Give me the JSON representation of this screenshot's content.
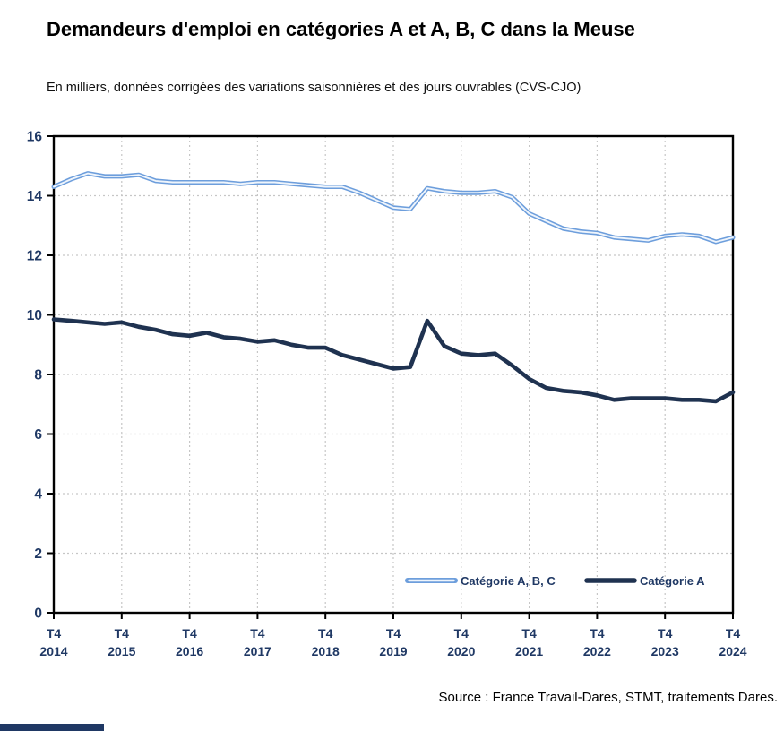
{
  "header": {
    "title": "Demandeurs d'emploi en catégories A et A, B, C dans la Meuse",
    "subtitle": "En milliers, données corrigées des variations saisonnières et des jours ouvrables (CVS-CJO)"
  },
  "source": "Source : France Travail-Dares, STMT, traitements Dares.",
  "colors": {
    "axis_label": "#1F3864",
    "frame": "#000000",
    "grid": "#C6C6C6",
    "footer_bar": "#1F3864",
    "series_abc_outer": "#6D9EDC",
    "series_abc_inner": "#EFF5FC",
    "series_a": "#1F3250",
    "legend_text": "#1F3864"
  },
  "chart_data": {
    "type": "line",
    "title": "Demandeurs d'emploi en catégories A et A, B, C dans la Meuse",
    "subtitle": "En milliers, données corrigées des variations saisonnières et des jours ouvrables (CVS-CJO)",
    "xlabel": "",
    "ylabel": "",
    "ylim": [
      0,
      16
    ],
    "y_ticks": [
      0,
      2,
      4,
      6,
      8,
      10,
      12,
      14,
      16
    ],
    "grid": true,
    "legend_position": "inside-bottom",
    "x_tick_quarter": "T4",
    "x_tick_years": [
      "2014",
      "2015",
      "2016",
      "2017",
      "2018",
      "2019",
      "2020",
      "2021",
      "2022",
      "2023",
      "2024"
    ],
    "x": [
      "T4 2014",
      "T1 2015",
      "T2 2015",
      "T3 2015",
      "T4 2015",
      "T1 2016",
      "T2 2016",
      "T3 2016",
      "T4 2016",
      "T1 2017",
      "T2 2017",
      "T3 2017",
      "T4 2017",
      "T1 2018",
      "T2 2018",
      "T3 2018",
      "T4 2018",
      "T1 2019",
      "T2 2019",
      "T3 2019",
      "T4 2019",
      "T1 2020",
      "T2 2020",
      "T3 2020",
      "T4 2020",
      "T1 2021",
      "T2 2021",
      "T3 2021",
      "T4 2021",
      "T1 2022",
      "T2 2022",
      "T3 2022",
      "T4 2022",
      "T1 2023",
      "T2 2023",
      "T3 2023",
      "T4 2023",
      "T1 2024",
      "T2 2024",
      "T3 2024",
      "T4 2024"
    ],
    "series": [
      {
        "name": "Catégorie A, B, C",
        "line_style": "double-outline",
        "values": [
          14.3,
          14.55,
          14.75,
          14.65,
          14.65,
          14.7,
          14.5,
          14.45,
          14.45,
          14.45,
          14.45,
          14.4,
          14.45,
          14.45,
          14.4,
          14.35,
          14.3,
          14.3,
          14.1,
          13.85,
          13.6,
          13.55,
          14.25,
          14.15,
          14.1,
          14.1,
          14.15,
          13.95,
          13.4,
          13.15,
          12.9,
          12.8,
          12.75,
          12.6,
          12.55,
          12.5,
          12.65,
          12.7,
          12.65,
          12.45,
          12.6
        ]
      },
      {
        "name": "Catégorie A",
        "line_style": "solid-thick",
        "values": [
          9.85,
          9.8,
          9.75,
          9.7,
          9.75,
          9.6,
          9.5,
          9.35,
          9.3,
          9.4,
          9.25,
          9.2,
          9.1,
          9.15,
          9.0,
          8.9,
          8.9,
          8.65,
          8.5,
          8.35,
          8.2,
          8.25,
          9.8,
          8.95,
          8.7,
          8.65,
          8.7,
          8.3,
          7.85,
          7.55,
          7.45,
          7.4,
          7.3,
          7.15,
          7.2,
          7.2,
          7.2,
          7.15,
          7.15,
          7.1,
          7.4
        ]
      }
    ]
  }
}
